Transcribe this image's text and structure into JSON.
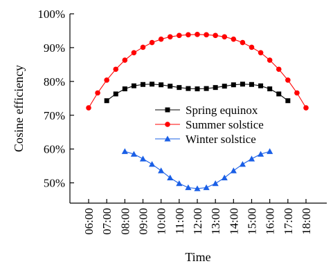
{
  "chart_data": {
    "type": "line",
    "xlabel": "Time",
    "ylabel": "Cosine efficiency",
    "categories": [
      "06:00",
      "06:30",
      "07:00",
      "07:30",
      "08:00",
      "08:30",
      "09:00",
      "09:30",
      "10:00",
      "10:30",
      "11:00",
      "11:30",
      "12:00",
      "12:30",
      "13:00",
      "13:30",
      "14:00",
      "14:30",
      "15:00",
      "15:30",
      "16:00",
      "16:30",
      "17:00",
      "17:30",
      "18:00"
    ],
    "tick_labels": [
      "06:00",
      "07:00",
      "08:00",
      "09:00",
      "10:00",
      "11:00",
      "12:00",
      "13:00",
      "14:00",
      "15:00",
      "16:00",
      "17:00",
      "18:00"
    ],
    "y_ticks": [
      50,
      60,
      70,
      80,
      90,
      100
    ],
    "y_tick_labels": [
      "50%",
      "60%",
      "70%",
      "80%",
      "90%",
      "100%"
    ],
    "ylim": [
      44,
      100
    ],
    "legend_position": "center-right",
    "series": [
      {
        "name": "Spring equinox",
        "color": "#000000",
        "marker": "square",
        "values": [
          null,
          null,
          74.3,
          76.3,
          77.8,
          78.7,
          79.1,
          79.2,
          79.0,
          78.6,
          78.2,
          77.9,
          77.8,
          77.9,
          78.2,
          78.6,
          79.0,
          79.2,
          79.1,
          78.7,
          77.8,
          76.3,
          74.3,
          null,
          null
        ]
      },
      {
        "name": "Summer solstice",
        "color": "#ff0000",
        "marker": "circle",
        "values": [
          72.2,
          76.6,
          80.4,
          83.6,
          86.3,
          88.5,
          90.1,
          91.5,
          92.5,
          93.2,
          93.6,
          93.8,
          93.9,
          93.8,
          93.6,
          93.2,
          92.5,
          91.5,
          90.1,
          88.5,
          86.3,
          83.6,
          80.4,
          76.6,
          72.2
        ]
      },
      {
        "name": "Winter solstice",
        "color": "#1a5fe6",
        "marker": "triangle",
        "values": [
          null,
          null,
          null,
          null,
          59.3,
          58.5,
          57.1,
          55.5,
          53.6,
          51.5,
          49.8,
          48.6,
          48.3,
          48.6,
          49.8,
          51.5,
          53.6,
          55.5,
          57.1,
          58.5,
          59.3,
          null,
          null,
          null,
          null
        ]
      }
    ]
  }
}
